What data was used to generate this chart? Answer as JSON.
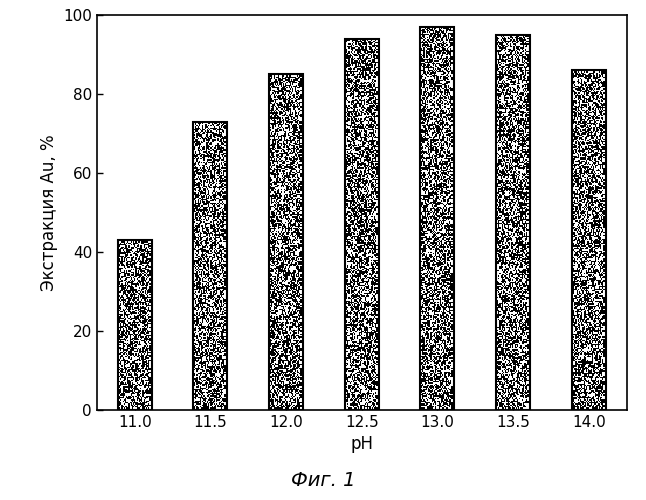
{
  "categories": [
    "11.0",
    "11.5",
    "12.0",
    "12.5",
    "13.0",
    "13.5",
    "14.0"
  ],
  "values": [
    43,
    73,
    85,
    94,
    97,
    95,
    86
  ],
  "xlabel": "pH",
  "ylabel": "Экстракция Au, %",
  "ylim": [
    0,
    100
  ],
  "yticks": [
    0,
    20,
    40,
    60,
    80,
    100
  ],
  "caption": "Фиг. 1",
  "bar_color": "#d8d8d8",
  "bar_edgecolor": "#000000",
  "bar_width": 0.45,
  "background_color": "#ffffff",
  "axis_fontsize": 12,
  "tick_fontsize": 11,
  "caption_fontsize": 14
}
